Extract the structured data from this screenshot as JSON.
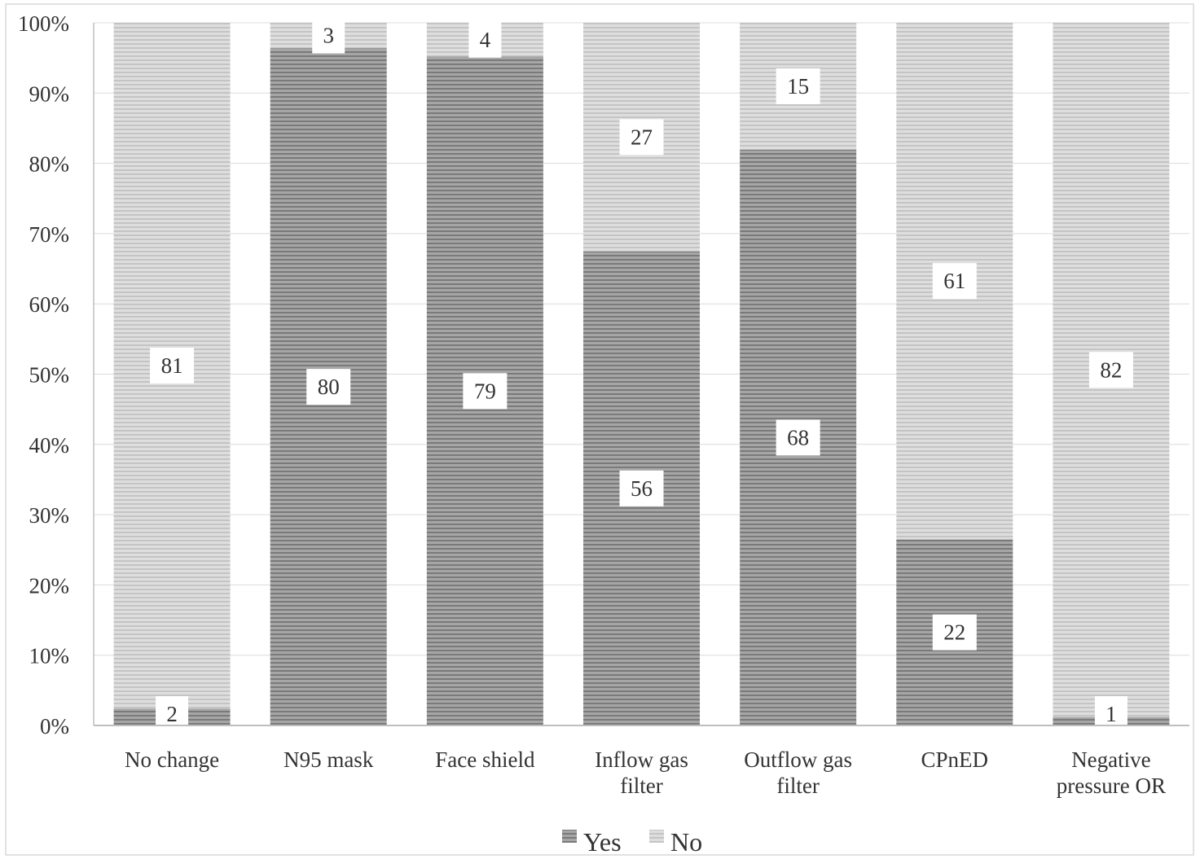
{
  "chart_data": {
    "type": "bar",
    "stacked": true,
    "normalized": true,
    "title": "",
    "xlabel": "",
    "ylabel": "",
    "ylim": [
      0,
      100
    ],
    "y_tick_labels": [
      "0%",
      "10%",
      "20%",
      "30%",
      "40%",
      "50%",
      "60%",
      "70%",
      "80%",
      "90%",
      "100%"
    ],
    "categories": [
      [
        "No change"
      ],
      [
        "N95 mask"
      ],
      [
        "Face shield"
      ],
      [
        "Inflow gas",
        "filter"
      ],
      [
        "Outflow gas",
        "filter"
      ],
      [
        "CPnED"
      ],
      [
        "Negative",
        "pressure OR"
      ]
    ],
    "series": [
      {
        "name": "Yes",
        "values": [
          2,
          80,
          79,
          56,
          68,
          22,
          1
        ],
        "color": "#8f8f8f"
      },
      {
        "name": "No",
        "values": [
          81,
          3,
          4,
          27,
          15,
          61,
          82
        ],
        "color": "#d3d3d3"
      }
    ],
    "grid": true,
    "legend": "bottom-center"
  }
}
